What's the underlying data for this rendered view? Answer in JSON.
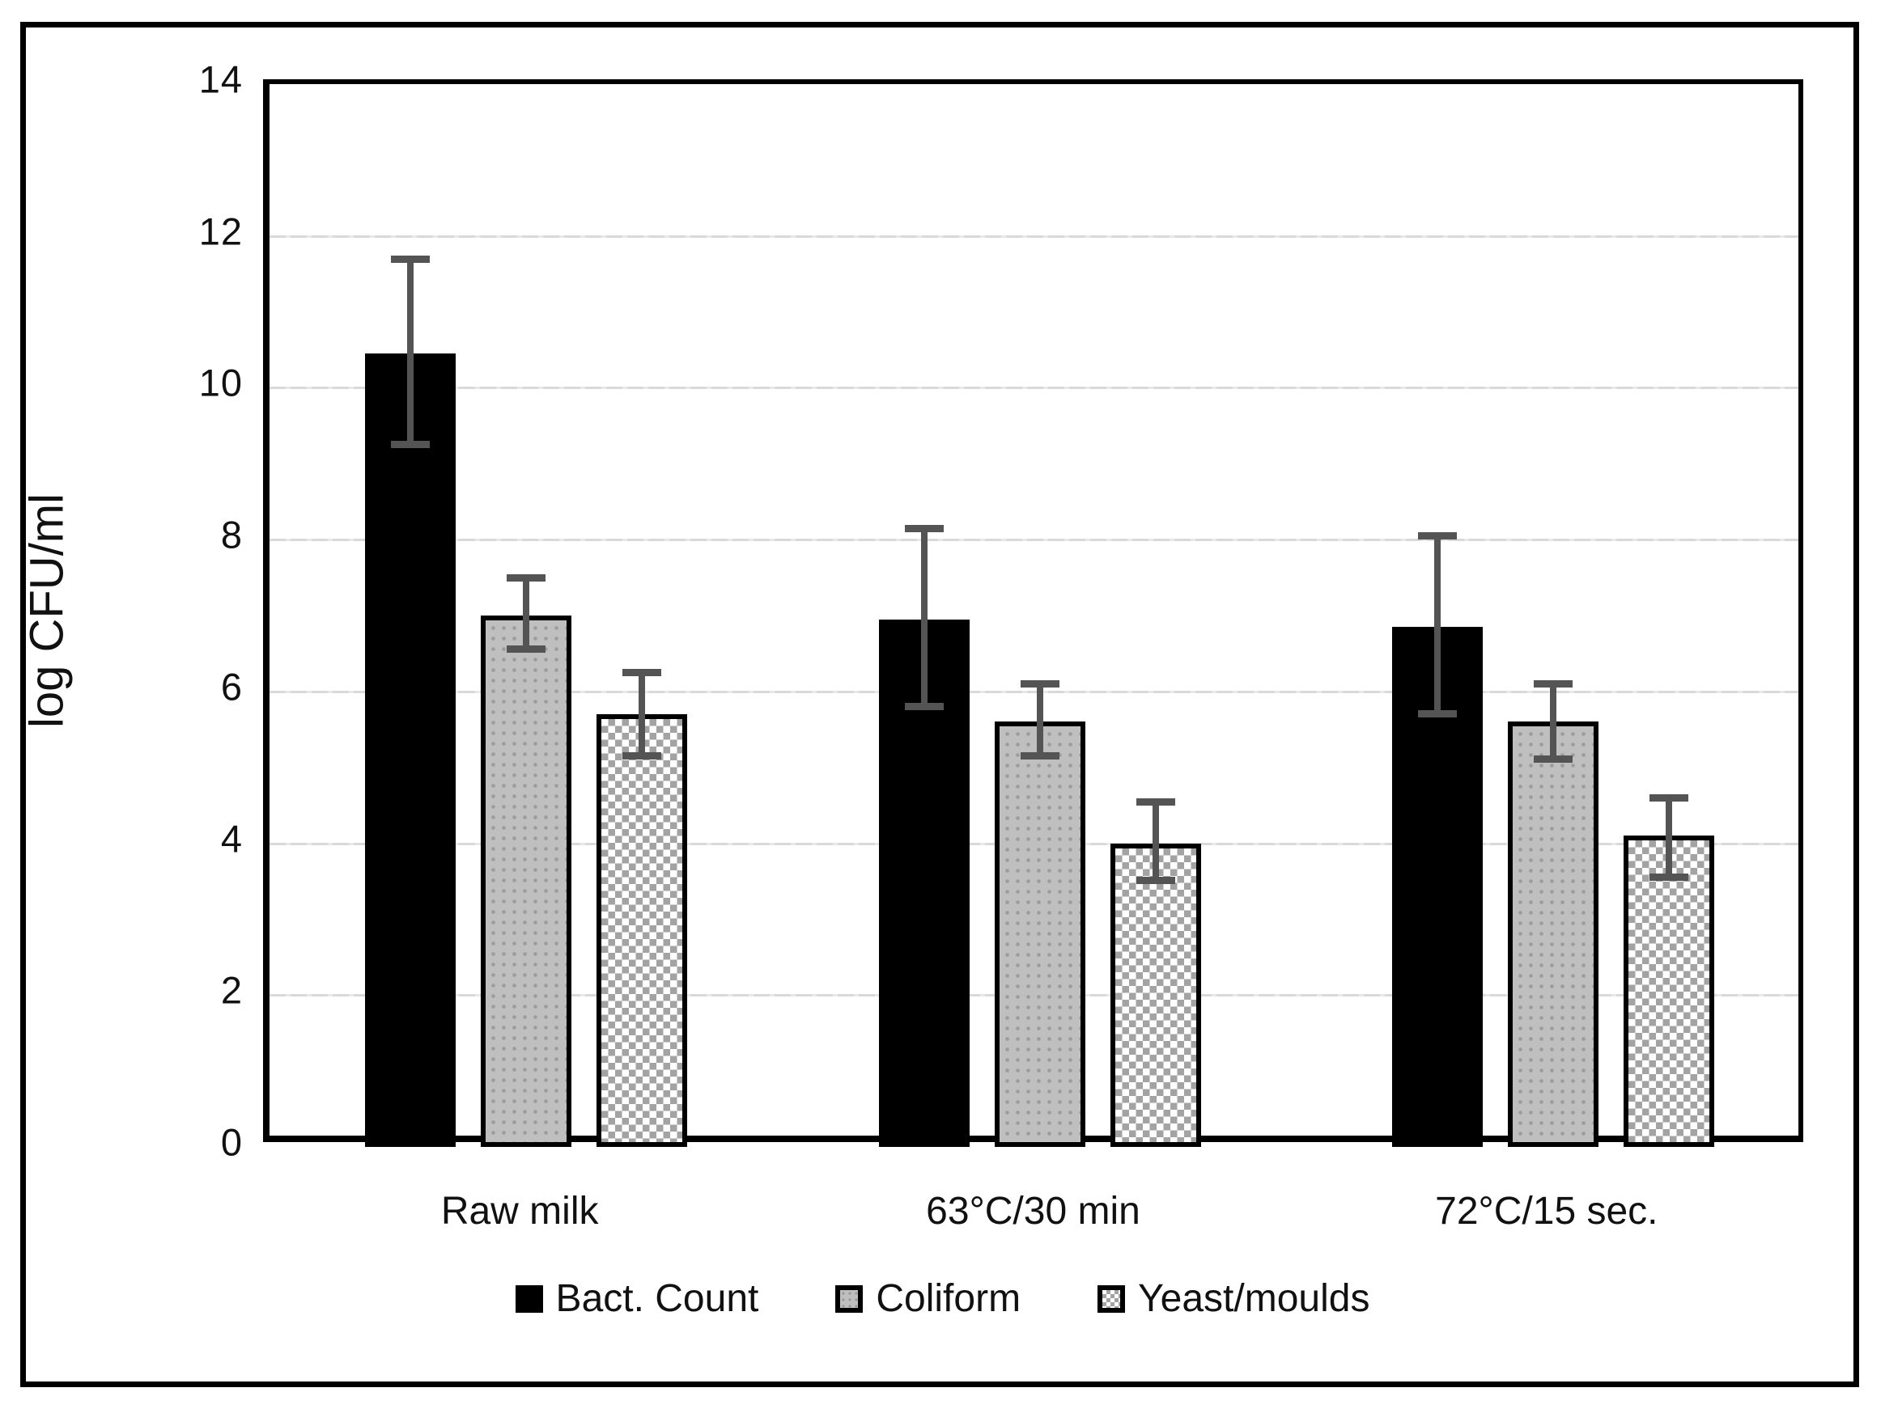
{
  "figure": {
    "background": "#ffffff",
    "border_color": "#000000",
    "plot_border_color": "#000000",
    "gridline_color": "#d9d9d9",
    "error_bar_color": "#545454"
  },
  "chart_data": {
    "type": "bar",
    "title": "",
    "xlabel": "",
    "ylabel": "log CFU/ml",
    "ylim": [
      0,
      14
    ],
    "yticks": [
      0,
      2,
      4,
      6,
      8,
      10,
      12,
      14
    ],
    "grid": "horizontal-light-dashed",
    "legend_position": "bottom",
    "categories": [
      "Raw milk",
      "63°C/30 min",
      "72°C/15 sec."
    ],
    "series": [
      {
        "name": "Bact. Count",
        "pattern": "solid-black",
        "fill_color": "#000000",
        "values": [
          10.45,
          6.95,
          6.85
        ],
        "error_high": [
          11.7,
          8.15,
          8.05
        ],
        "error_low": [
          9.25,
          5.8,
          5.7
        ]
      },
      {
        "name": "Coliform",
        "pattern": "gray-dots",
        "fill_color": "#bfbfbf",
        "values": [
          7.0,
          5.6,
          5.6
        ],
        "error_high": [
          7.5,
          6.1,
          6.1
        ],
        "error_low": [
          6.55,
          5.15,
          5.1
        ]
      },
      {
        "name": "Yeast/moulds",
        "pattern": "checker",
        "fill_color": "#ffffff",
        "values": [
          5.7,
          4.0,
          4.1
        ],
        "error_high": [
          6.25,
          4.55,
          4.6
        ],
        "error_low": [
          5.15,
          3.5,
          3.55
        ]
      }
    ]
  }
}
